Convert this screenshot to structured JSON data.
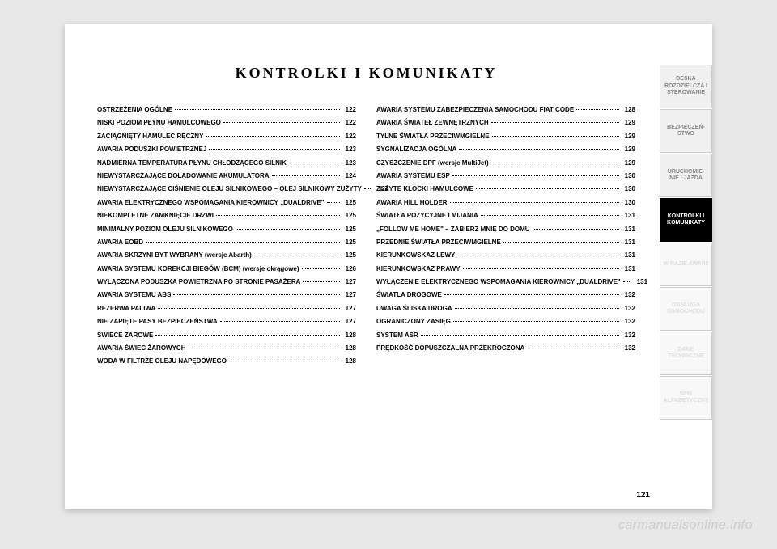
{
  "title": "KONTROLKI I KOMUNIKATY",
  "page_number": "121",
  "watermark": "carmanualsonline.info",
  "left_column": [
    {
      "label": "OSTRZEŻENIA OGÓLNE",
      "page": "122"
    },
    {
      "label": "NISKI POZIOM PŁYNU HAMULCOWEGO",
      "page": "122"
    },
    {
      "label": "ZACIĄGNIĘTY HAMULEC RĘCZNY",
      "page": "122"
    },
    {
      "label": "AWARIA PODUSZKI POWIETRZNEJ",
      "page": "123"
    },
    {
      "label": "NADMIERNA TEMPERATURA PŁYNU CHŁODZĄCEGO SILNIK",
      "page": "123"
    },
    {
      "label": "NIEWYSTARCZAJĄCE DOŁADOWANIE AKUMULATORA",
      "page": "124"
    },
    {
      "label": "NIEWYSTARCZAJĄCE CIŚNIENIE OLEJU SILNIKOWEGO – OLEJ SILNIKOWY ZUŻYTY",
      "page": "124"
    },
    {
      "label": "AWARIA ELEKTRYCZNEGO WSPOMAGANIA KIEROWNICY „DUALDRIVE\"",
      "page": "125"
    },
    {
      "label": "NIEKOMPLETNE ZAMKNIĘCIE DRZWI",
      "page": "125"
    },
    {
      "label": "MINIMALNY POZIOM OLEJU SILNIKOWEGO",
      "page": "125"
    },
    {
      "label": "AWARIA EOBD",
      "page": "125"
    },
    {
      "label": "AWARIA SKRZYNI BYT WYBRANY (wersje Abarth)",
      "page": "125"
    },
    {
      "label": "AWARIA SYSTEMU KOREKCJI BIEGÓW (BCM) (wersje okrągowe)",
      "page": "126"
    },
    {
      "label": "WYŁĄCZONA PODUSZKA POWIETRZNA PO STRONIE PASAŻERA",
      "page": "127"
    },
    {
      "label": "AWARIA SYSTEMU ABS",
      "page": "127"
    },
    {
      "label": "REZERWA PALIWA",
      "page": "127"
    },
    {
      "label": "NIE ZAPIĘTE PASY BEZPIECZEŃSTWA",
      "page": "127"
    },
    {
      "label": "ŚWIECE ŻAROWE",
      "page": "128"
    },
    {
      "label": "AWARIA ŚWIEC ŻAROWYCH",
      "page": "128"
    },
    {
      "label": "WODA W FILTRZE OLEJU NAPĘDOWEGO",
      "page": "128"
    }
  ],
  "right_column": [
    {
      "label": "AWARIA SYSTEMU ZABEZPIECZENIA SAMOCHODU FIAT CODE",
      "page": "128"
    },
    {
      "label": "AWARIA ŚWIATEŁ ZEWNĘTRZNYCH",
      "page": "129"
    },
    {
      "label": "TYLNE ŚWIATŁA PRZECIWMGIELNE",
      "page": "129"
    },
    {
      "label": "SYGNALIZACJA OGÓLNA",
      "page": "129"
    },
    {
      "label": "CZYSZCZENIE DPF (wersje MultiJet)",
      "page": "129"
    },
    {
      "label": "AWARIA SYSTEMU ESP",
      "page": "130"
    },
    {
      "label": "ZUŻYTE KLOCKI HAMULCOWE",
      "page": "130"
    },
    {
      "label": "AWARIA HILL HOLDER",
      "page": "130"
    },
    {
      "label": "ŚWIATŁA POZYCYJNE I MIJANIA",
      "page": "131"
    },
    {
      "label": "„FOLLOW ME HOME\" – ZABIERZ MNIE DO DOMU",
      "page": "131"
    },
    {
      "label": "PRZEDNIE ŚWIATŁA PRZECIWMGIELNE",
      "page": "131"
    },
    {
      "label": "KIERUNKOWSKAZ LEWY",
      "page": "131"
    },
    {
      "label": "KIERUNKOWSKAZ PRAWY",
      "page": "131"
    },
    {
      "label": "WYŁĄCZENIE ELEKTRYCZNEGO WSPOMAGANIA KIEROWNICY „DUALDRIVE\"",
      "page": "131"
    },
    {
      "label": "ŚWIATŁA DROGOWE",
      "page": "132"
    },
    {
      "label": "UWAGA ŚLISKA DROGA",
      "page": "132"
    },
    {
      "label": "OGRANICZONY ZASIĘG",
      "page": "132"
    },
    {
      "label": "SYSTEM ASR",
      "page": "132"
    },
    {
      "label": "PRĘDKOŚĆ DOPUSZCZALNA PRZEKROCZONA",
      "page": "132"
    }
  ],
  "tabs": [
    {
      "label": "DESKA ROZDZIELCZA I STEROWANIE",
      "class": "light"
    },
    {
      "label": "BEZPIECZEŃ- STWO",
      "class": "light"
    },
    {
      "label": "URUCHOMIE- NIE I JAZDA",
      "class": "light"
    },
    {
      "label": "KONTROLKI I KOMUNIKATY",
      "class": "active"
    },
    {
      "label": "W RAZIE AWARII",
      "class": "faded"
    },
    {
      "label": "OBSŁUGA SAMOCHODU",
      "class": "faded"
    },
    {
      "label": "DANE TECHNICZNE",
      "class": "faded"
    },
    {
      "label": "SPIS ALFABETYCZNY",
      "class": "faded"
    }
  ],
  "colors": {
    "page_bg": "#e8e8e8",
    "paper_bg": "#ffffff",
    "text": "#000000",
    "tab_active_bg": "#000000",
    "tab_active_fg": "#ffffff",
    "tab_light_bg": "#f0f0f0",
    "tab_light_fg": "#888888",
    "tab_faded_bg": "#f8f8f8",
    "tab_faded_fg": "#dddddd",
    "watermark": "#cccccc"
  }
}
